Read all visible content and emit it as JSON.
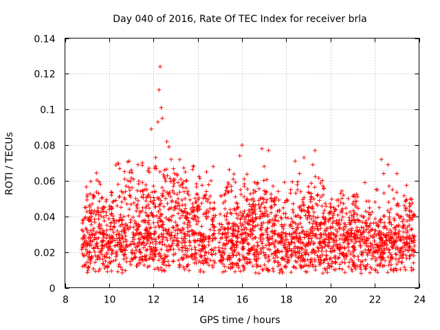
{
  "chart_data": {
    "type": "scatter",
    "title": "Day 040 of 2016, Rate Of TEC Index for receiver brla",
    "xlabel": "GPS time / hours",
    "ylabel": "ROTI / TECUs",
    "xlim": [
      8,
      24
    ],
    "ylim": [
      0,
      0.14
    ],
    "x_ticks": [
      8,
      10,
      12,
      14,
      16,
      18,
      20,
      22,
      24
    ],
    "x_tick_labels": [
      "8",
      "10",
      "12",
      "14",
      "16",
      "18",
      "20",
      "22",
      "24"
    ],
    "y_ticks": [
      0,
      0.02,
      0.04,
      0.06,
      0.08,
      0.1,
      0.12,
      0.14
    ],
    "y_tick_labels": [
      "0",
      "0.02",
      "0.04",
      "0.06",
      "0.08",
      "0.1",
      "0.12",
      "0.14"
    ],
    "grid": true,
    "marker": "+",
    "color": "#ff0000",
    "series": [
      {
        "name": "ROTI",
        "points": [
          [
            8.8,
            0.012
          ],
          [
            8.85,
            0.018
          ],
          [
            8.9,
            0.025
          ],
          [
            8.95,
            0.045
          ],
          [
            9.0,
            0.052
          ],
          [
            9.05,
            0.038
          ],
          [
            9.1,
            0.02
          ],
          [
            9.15,
            0.015
          ],
          [
            9.2,
            0.03
          ],
          [
            9.3,
            0.022
          ],
          [
            9.4,
            0.041
          ],
          [
            9.5,
            0.018
          ],
          [
            9.6,
            0.058
          ],
          [
            9.7,
            0.026
          ],
          [
            9.8,
            0.011
          ],
          [
            9.9,
            0.035
          ],
          [
            10.0,
            0.044
          ],
          [
            10.1,
            0.021
          ],
          [
            10.2,
            0.031
          ],
          [
            10.3,
            0.049
          ],
          [
            10.4,
            0.058
          ],
          [
            10.5,
            0.025
          ],
          [
            10.6,
            0.038
          ],
          [
            10.7,
            0.061
          ],
          [
            10.8,
            0.047
          ],
          [
            10.9,
            0.071
          ],
          [
            11.0,
            0.066
          ],
          [
            11.1,
            0.034
          ],
          [
            11.2,
            0.05
          ],
          [
            11.3,
            0.069
          ],
          [
            11.4,
            0.042
          ],
          [
            11.5,
            0.07
          ],
          [
            11.6,
            0.028
          ],
          [
            11.7,
            0.055
          ],
          [
            11.8,
            0.067
          ],
          [
            11.9,
            0.089
          ],
          [
            12.0,
            0.057
          ],
          [
            12.1,
            0.073
          ],
          [
            12.2,
            0.093
          ],
          [
            12.25,
            0.111
          ],
          [
            12.3,
            0.124
          ],
          [
            12.35,
            0.101
          ],
          [
            12.4,
            0.095
          ],
          [
            12.5,
            0.066
          ],
          [
            12.6,
            0.082
          ],
          [
            12.7,
            0.079
          ],
          [
            12.8,
            0.072
          ],
          [
            12.9,
            0.06
          ],
          [
            13.0,
            0.048
          ],
          [
            13.2,
            0.039
          ],
          [
            13.4,
            0.03
          ],
          [
            13.6,
            0.052
          ],
          [
            13.8,
            0.068
          ],
          [
            14.0,
            0.043
          ],
          [
            14.2,
            0.027
          ],
          [
            14.4,
            0.065
          ],
          [
            14.6,
            0.06
          ],
          [
            14.7,
            0.068
          ],
          [
            15.0,
            0.015
          ],
          [
            15.1,
            0.028
          ],
          [
            15.2,
            0.052
          ],
          [
            15.3,
            0.04
          ],
          [
            15.4,
            0.058
          ],
          [
            15.5,
            0.022
          ],
          [
            15.6,
            0.035
          ],
          [
            15.8,
            0.047
          ],
          [
            15.9,
            0.074
          ],
          [
            16.0,
            0.08
          ],
          [
            16.1,
            0.061
          ],
          [
            16.3,
            0.038
          ],
          [
            16.5,
            0.05
          ],
          [
            16.7,
            0.059
          ],
          [
            16.9,
            0.078
          ],
          [
            17.0,
            0.068
          ],
          [
            17.2,
            0.077
          ],
          [
            17.4,
            0.057
          ],
          [
            17.6,
            0.043
          ],
          [
            17.8,
            0.031
          ],
          [
            18.0,
            0.049
          ],
          [
            18.2,
            0.055
          ],
          [
            18.4,
            0.071
          ],
          [
            18.6,
            0.064
          ],
          [
            18.8,
            0.073
          ],
          [
            19.0,
            0.042
          ],
          [
            19.2,
            0.069
          ],
          [
            19.3,
            0.077
          ],
          [
            19.5,
            0.049
          ],
          [
            19.7,
            0.036
          ],
          [
            20.0,
            0.028
          ],
          [
            20.2,
            0.044
          ],
          [
            20.4,
            0.038
          ],
          [
            20.6,
            0.033
          ],
          [
            20.8,
            0.05
          ],
          [
            21.0,
            0.047
          ],
          [
            21.2,
            0.041
          ],
          [
            21.4,
            0.03
          ],
          [
            21.6,
            0.036
          ],
          [
            21.8,
            0.025
          ],
          [
            22.0,
            0.032
          ],
          [
            22.2,
            0.045
          ],
          [
            22.3,
            0.072
          ],
          [
            22.4,
            0.064
          ],
          [
            22.6,
            0.069
          ],
          [
            22.8,
            0.055
          ],
          [
            23.0,
            0.064
          ],
          [
            23.2,
            0.04
          ],
          [
            23.4,
            0.033
          ],
          [
            23.6,
            0.039
          ],
          [
            23.75,
            0.028
          ]
        ]
      }
    ],
    "gap": [
      14.8,
      14.95
    ]
  }
}
